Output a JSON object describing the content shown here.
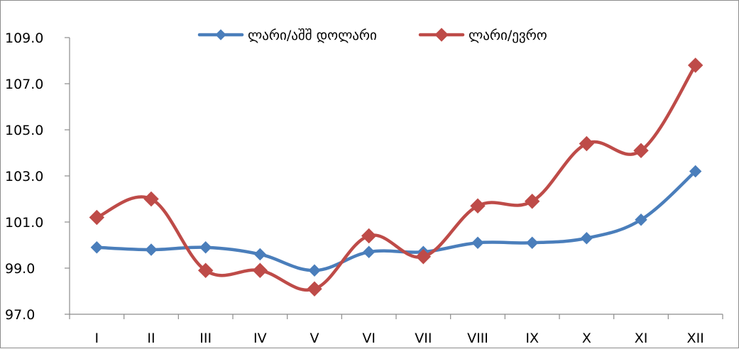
{
  "chart_data": {
    "type": "line",
    "title": "",
    "xlabel": "",
    "ylabel": "",
    "categories": [
      "I",
      "II",
      "III",
      "IV",
      "V",
      "VI",
      "VII",
      "VIII",
      "IX",
      "X",
      "XI",
      "XII"
    ],
    "ylim": [
      97.0,
      109.0
    ],
    "yticks": [
      "97.0",
      "99.0",
      "101.0",
      "103.0",
      "105.0",
      "107.0",
      "109.0"
    ],
    "ytick_values": [
      97,
      99,
      101,
      103,
      105,
      107,
      109
    ],
    "grid": false,
    "legend_position": "top-center",
    "smoothed": true,
    "series": [
      {
        "name": "ლარი/აშშ დოლარი",
        "color": "#4a7ebb",
        "marker": "diamond",
        "values": [
          99.9,
          99.8,
          99.9,
          99.6,
          98.9,
          99.7,
          99.7,
          100.1,
          100.1,
          100.3,
          101.1,
          103.2
        ]
      },
      {
        "name": "ლარი/ევრო",
        "color": "#be4b48",
        "marker": "diamond",
        "values": [
          101.2,
          102.0,
          98.9,
          98.9,
          98.1,
          100.4,
          99.5,
          101.7,
          101.9,
          104.4,
          104.1,
          107.8
        ]
      }
    ]
  }
}
